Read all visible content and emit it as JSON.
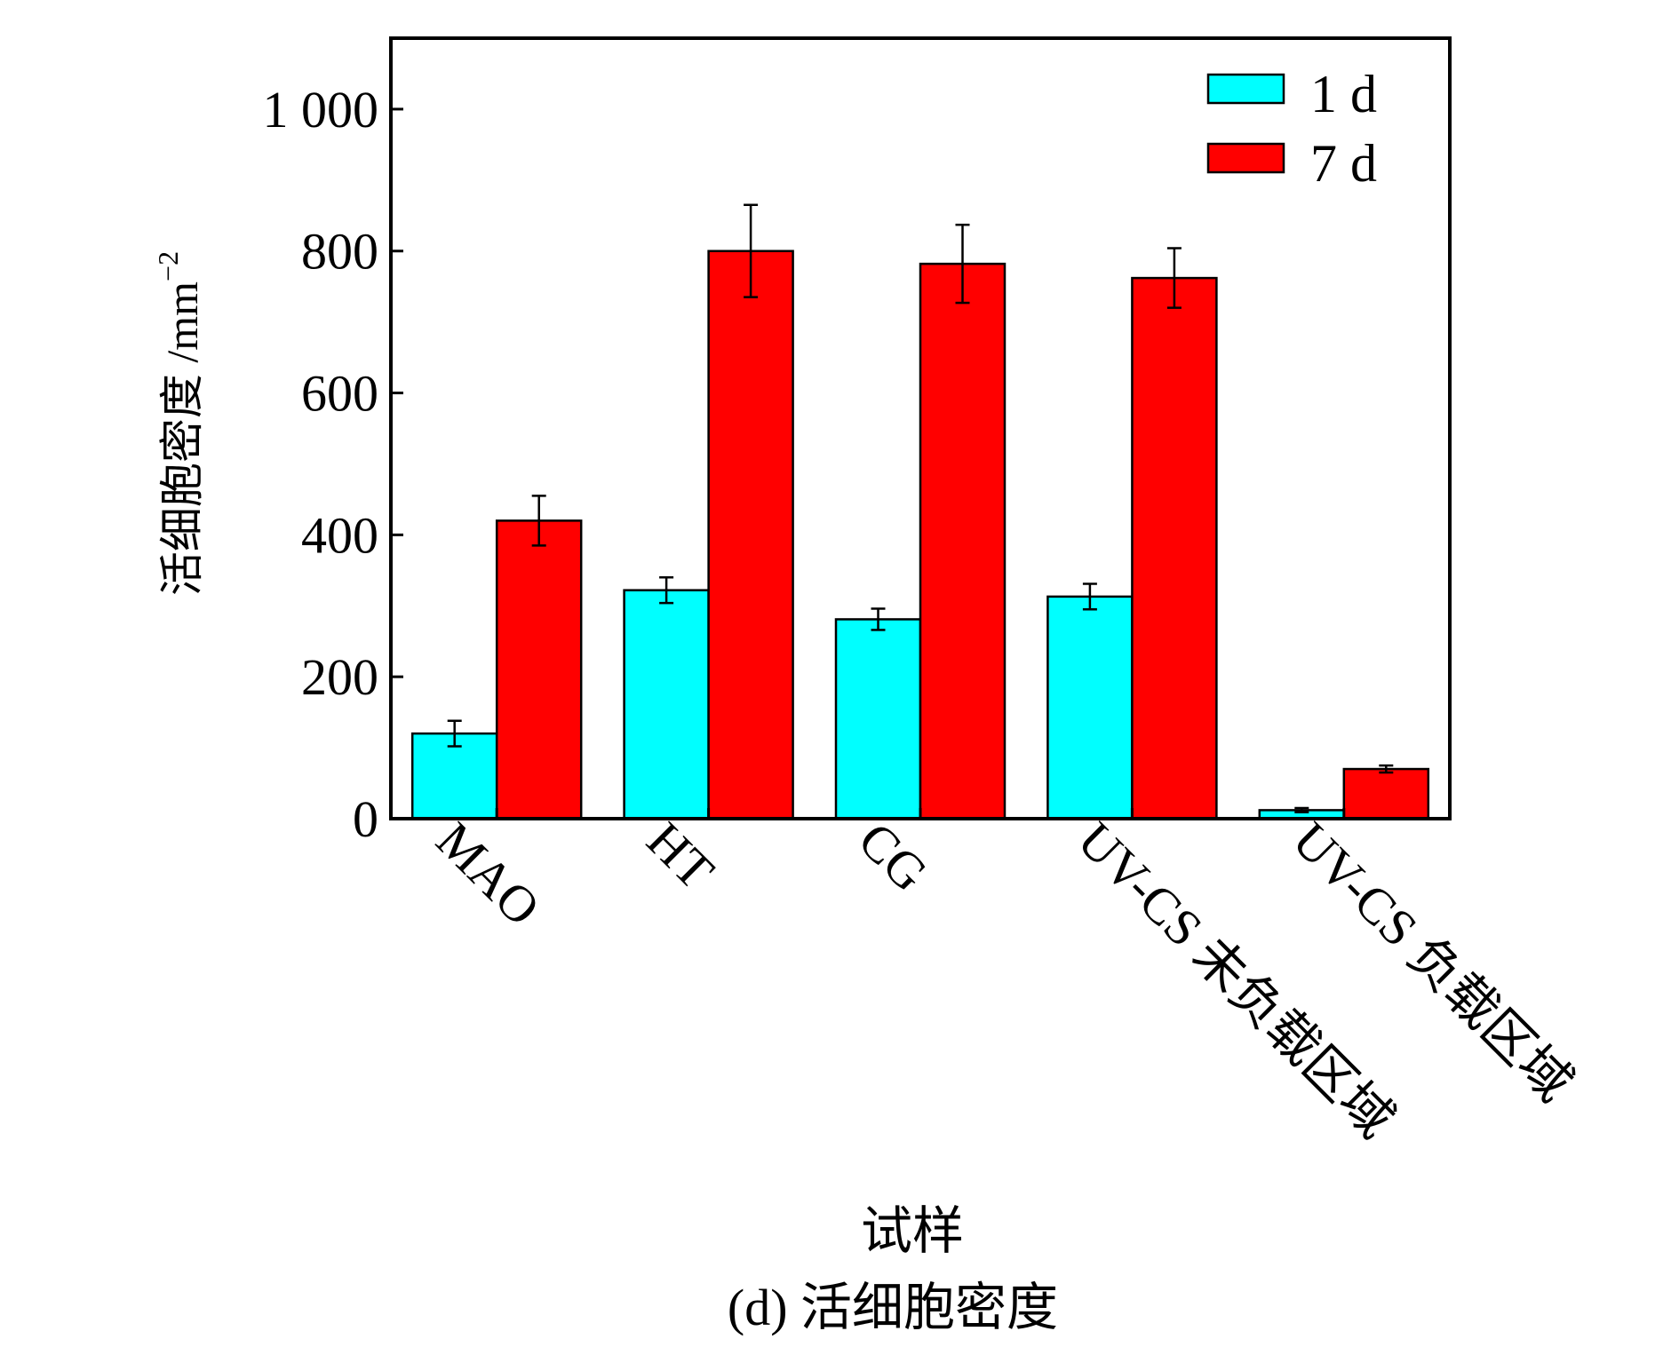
{
  "chart_data": {
    "type": "bar",
    "xlabel": "试样",
    "ylabel": "活细胞密度 /mm",
    "ylabel_sup": "−2",
    "caption": "(d) 活细胞密度",
    "categories": [
      "MAO",
      "HT",
      "CG",
      "UV-CS 未负载区域",
      "UV-CS 负载区域"
    ],
    "series": [
      {
        "name": "1 d",
        "color": "#00ffff",
        "values": [
          120,
          322,
          281,
          313,
          12
        ],
        "errors": [
          18,
          18,
          15,
          18,
          3
        ]
      },
      {
        "name": "7 d",
        "color": "#ff0000",
        "values": [
          420,
          800,
          782,
          762,
          70
        ],
        "errors": [
          35,
          65,
          55,
          42,
          5
        ]
      }
    ],
    "ylim": [
      0,
      1100
    ],
    "yticks": [
      0,
      200,
      400,
      600,
      800,
      1000
    ],
    "ytick_labels": [
      "0",
      "200",
      "400",
      "600",
      "800",
      "1 000"
    ],
    "legend_position": "top-right",
    "grid": false
  }
}
